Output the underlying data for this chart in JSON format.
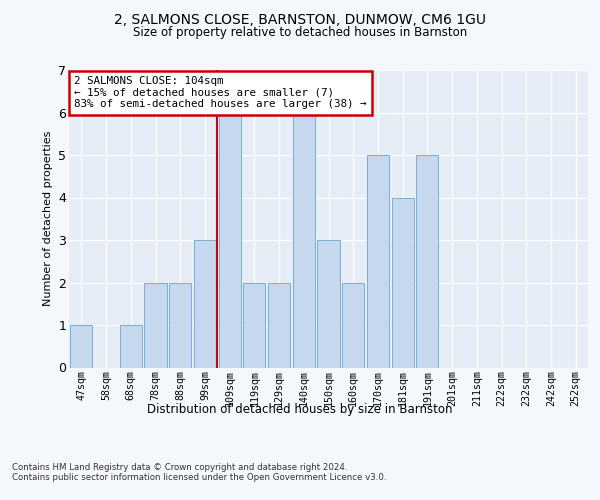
{
  "title1": "2, SALMONS CLOSE, BARNSTON, DUNMOW, CM6 1GU",
  "title2": "Size of property relative to detached houses in Barnston",
  "xlabel": "Distribution of detached houses by size in Barnston",
  "ylabel": "Number of detached properties",
  "categories": [
    "47sqm",
    "58sqm",
    "68sqm",
    "78sqm",
    "88sqm",
    "99sqm",
    "109sqm",
    "119sqm",
    "129sqm",
    "140sqm",
    "150sqm",
    "160sqm",
    "170sqm",
    "181sqm",
    "191sqm",
    "201sqm",
    "211sqm",
    "222sqm",
    "232sqm",
    "242sqm",
    "252sqm"
  ],
  "values": [
    1,
    0,
    1,
    2,
    2,
    3,
    6,
    2,
    2,
    6,
    3,
    2,
    5,
    4,
    5,
    0,
    0,
    0,
    0,
    0,
    0
  ],
  "bar_color": "#c5d8ee",
  "bar_edge_color": "#7aaed6",
  "vline_x": 5.5,
  "vline_color": "#cc0000",
  "annotation_text": "2 SALMONS CLOSE: 104sqm\n← 15% of detached houses are smaller (7)\n83% of semi-detached houses are larger (38) →",
  "annotation_box_color": "#cc0000",
  "footnote": "Contains HM Land Registry data © Crown copyright and database right 2024.\nContains public sector information licensed under the Open Government Licence v3.0.",
  "ylim": [
    0,
    7
  ],
  "yticks": [
    0,
    1,
    2,
    3,
    4,
    5,
    6,
    7
  ],
  "fig_bg_color": "#f4f7fb",
  "plot_bg_color": "#e6edf6"
}
